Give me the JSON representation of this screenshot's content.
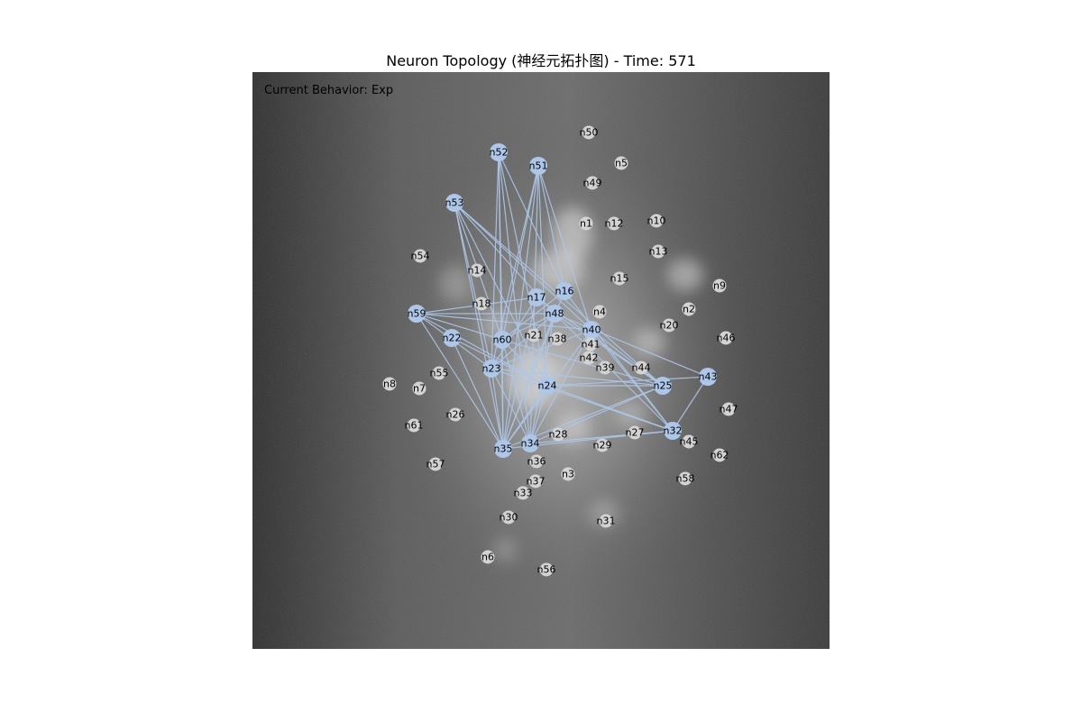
{
  "title": "Neuron Topology (神经元拓扑图) - Time: 571",
  "behavior_label": "Current Behavior: Exp",
  "colors": {
    "active_node": "#aec7e8",
    "inactive_node": "#d3d3d3",
    "edge": "#aec7e8",
    "background_dark": "#3f3f3f",
    "background_light": "#bfbfbf"
  },
  "nodes": [
    {
      "id": "n1",
      "active": false
    },
    {
      "id": "n2",
      "active": false
    },
    {
      "id": "n3",
      "active": false
    },
    {
      "id": "n4",
      "active": false
    },
    {
      "id": "n5",
      "active": false
    },
    {
      "id": "n6",
      "active": false
    },
    {
      "id": "n7",
      "active": false
    },
    {
      "id": "n8",
      "active": false
    },
    {
      "id": "n9",
      "active": false
    },
    {
      "id": "n10",
      "active": false
    },
    {
      "id": "n12",
      "active": false
    },
    {
      "id": "n13",
      "active": false
    },
    {
      "id": "n14",
      "active": false
    },
    {
      "id": "n15",
      "active": false
    },
    {
      "id": "n16",
      "active": true
    },
    {
      "id": "n17",
      "active": true
    },
    {
      "id": "n18",
      "active": false
    },
    {
      "id": "n20",
      "active": false
    },
    {
      "id": "n21",
      "active": false
    },
    {
      "id": "n22",
      "active": true
    },
    {
      "id": "n23",
      "active": true
    },
    {
      "id": "n24",
      "active": true
    },
    {
      "id": "n25",
      "active": true
    },
    {
      "id": "n26",
      "active": false
    },
    {
      "id": "n27",
      "active": false
    },
    {
      "id": "n28",
      "active": false
    },
    {
      "id": "n29",
      "active": false
    },
    {
      "id": "n30",
      "active": false
    },
    {
      "id": "n31",
      "active": false
    },
    {
      "id": "n32",
      "active": true
    },
    {
      "id": "n33",
      "active": false
    },
    {
      "id": "n34",
      "active": true
    },
    {
      "id": "n35",
      "active": true
    },
    {
      "id": "n36",
      "active": false
    },
    {
      "id": "n37",
      "active": false
    },
    {
      "id": "n38",
      "active": false
    },
    {
      "id": "n39",
      "active": false
    },
    {
      "id": "n40",
      "active": true
    },
    {
      "id": "n41",
      "active": false
    },
    {
      "id": "n42",
      "active": false
    },
    {
      "id": "n43",
      "active": true
    },
    {
      "id": "n44",
      "active": false
    },
    {
      "id": "n45",
      "active": false
    },
    {
      "id": "n46",
      "active": false
    },
    {
      "id": "n47",
      "active": false
    },
    {
      "id": "n48",
      "active": true
    },
    {
      "id": "n49",
      "active": false
    },
    {
      "id": "n50",
      "active": false
    },
    {
      "id": "n51",
      "active": true
    },
    {
      "id": "n52",
      "active": true
    },
    {
      "id": "n53",
      "active": true
    },
    {
      "id": "n54",
      "active": false
    },
    {
      "id": "n55",
      "active": false
    },
    {
      "id": "n56",
      "active": false
    },
    {
      "id": "n57",
      "active": false
    },
    {
      "id": "n58",
      "active": false
    },
    {
      "id": "n59",
      "active": true
    },
    {
      "id": "n60",
      "active": true
    },
    {
      "id": "n61",
      "active": false
    },
    {
      "id": "n62",
      "active": false
    }
  ],
  "edges": [
    [
      "n52",
      "n35"
    ],
    [
      "n52",
      "n34"
    ],
    [
      "n52",
      "n24"
    ],
    [
      "n52",
      "n23"
    ],
    [
      "n52",
      "n16"
    ],
    [
      "n52",
      "n60"
    ],
    [
      "n51",
      "n35"
    ],
    [
      "n51",
      "n34"
    ],
    [
      "n51",
      "n24"
    ],
    [
      "n51",
      "n60"
    ],
    [
      "n51",
      "n16"
    ],
    [
      "n51",
      "n40"
    ],
    [
      "n51",
      "n23"
    ],
    [
      "n53",
      "n35"
    ],
    [
      "n53",
      "n24"
    ],
    [
      "n53",
      "n25"
    ],
    [
      "n53",
      "n48"
    ],
    [
      "n53",
      "n40"
    ],
    [
      "n53",
      "n60"
    ],
    [
      "n53",
      "n23"
    ],
    [
      "n59",
      "n35"
    ],
    [
      "n59",
      "n17"
    ],
    [
      "n59",
      "n24"
    ],
    [
      "n59",
      "n23"
    ],
    [
      "n59",
      "n48"
    ],
    [
      "n59",
      "n40"
    ],
    [
      "n59",
      "n60"
    ],
    [
      "n22",
      "n24"
    ],
    [
      "n22",
      "n35"
    ],
    [
      "n17",
      "n35"
    ],
    [
      "n17",
      "n25"
    ],
    [
      "n17",
      "n23"
    ],
    [
      "n16",
      "n35"
    ],
    [
      "n16",
      "n32"
    ],
    [
      "n16",
      "n60"
    ],
    [
      "n48",
      "n35"
    ],
    [
      "n48",
      "n34"
    ],
    [
      "n48",
      "n25"
    ],
    [
      "n48",
      "n23"
    ],
    [
      "n48",
      "n32"
    ],
    [
      "n48",
      "n60"
    ],
    [
      "n40",
      "n35"
    ],
    [
      "n40",
      "n34"
    ],
    [
      "n40",
      "n32"
    ],
    [
      "n40",
      "n25"
    ],
    [
      "n40",
      "n23"
    ],
    [
      "n60",
      "n35"
    ],
    [
      "n60",
      "n34"
    ],
    [
      "n60",
      "n24"
    ],
    [
      "n60",
      "n25"
    ],
    [
      "n23",
      "n35"
    ],
    [
      "n23",
      "n34"
    ],
    [
      "n23",
      "n32"
    ],
    [
      "n23",
      "n25"
    ],
    [
      "n24",
      "n35"
    ],
    [
      "n24",
      "n34"
    ],
    [
      "n24",
      "n25"
    ],
    [
      "n24",
      "n32"
    ],
    [
      "n43",
      "n32"
    ],
    [
      "n43",
      "n24"
    ],
    [
      "n43",
      "n48"
    ],
    [
      "n25",
      "n35"
    ],
    [
      "n25",
      "n34"
    ],
    [
      "n32",
      "n35"
    ],
    [
      "n32",
      "n34"
    ]
  ]
}
